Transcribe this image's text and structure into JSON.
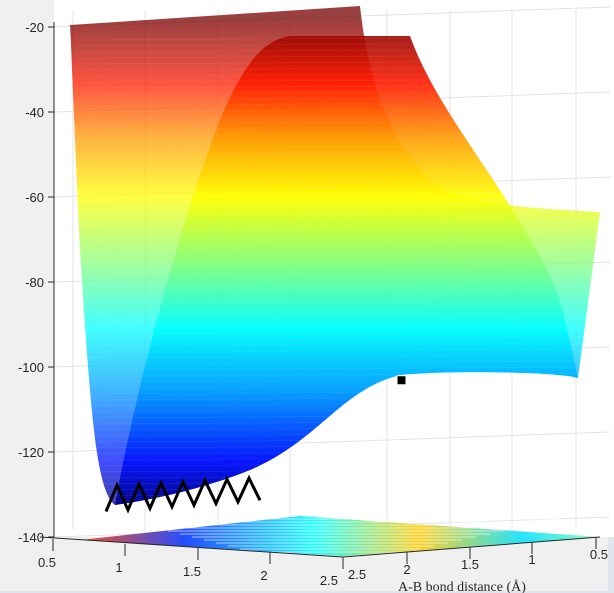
{
  "chart_data": {
    "type": "surface",
    "title": "",
    "colormap": "jet",
    "zlim": [
      -140,
      -20
    ],
    "z_ticks": [
      -20,
      -40,
      -60,
      -80,
      -100,
      -120,
      -140
    ],
    "x_left_ticks": [
      "0.5",
      "1",
      "1.5",
      "2",
      "2.5"
    ],
    "x_right_ticks": [
      "2.5",
      "2",
      "1.5",
      "1",
      "0.5"
    ],
    "xlabel": "A-B bond distance (Å)",
    "grid": true,
    "surface_min_z": -134,
    "plateau_z": -103,
    "marker": {
      "shape": "square",
      "color": "#000000",
      "z": -103
    },
    "trajectory": {
      "color": "#000000",
      "z_range": [
        -134,
        -126
      ]
    },
    "colors": {
      "background": "#f0f0f0",
      "axes": "#ffffff",
      "axis_line": "#262626"
    }
  }
}
